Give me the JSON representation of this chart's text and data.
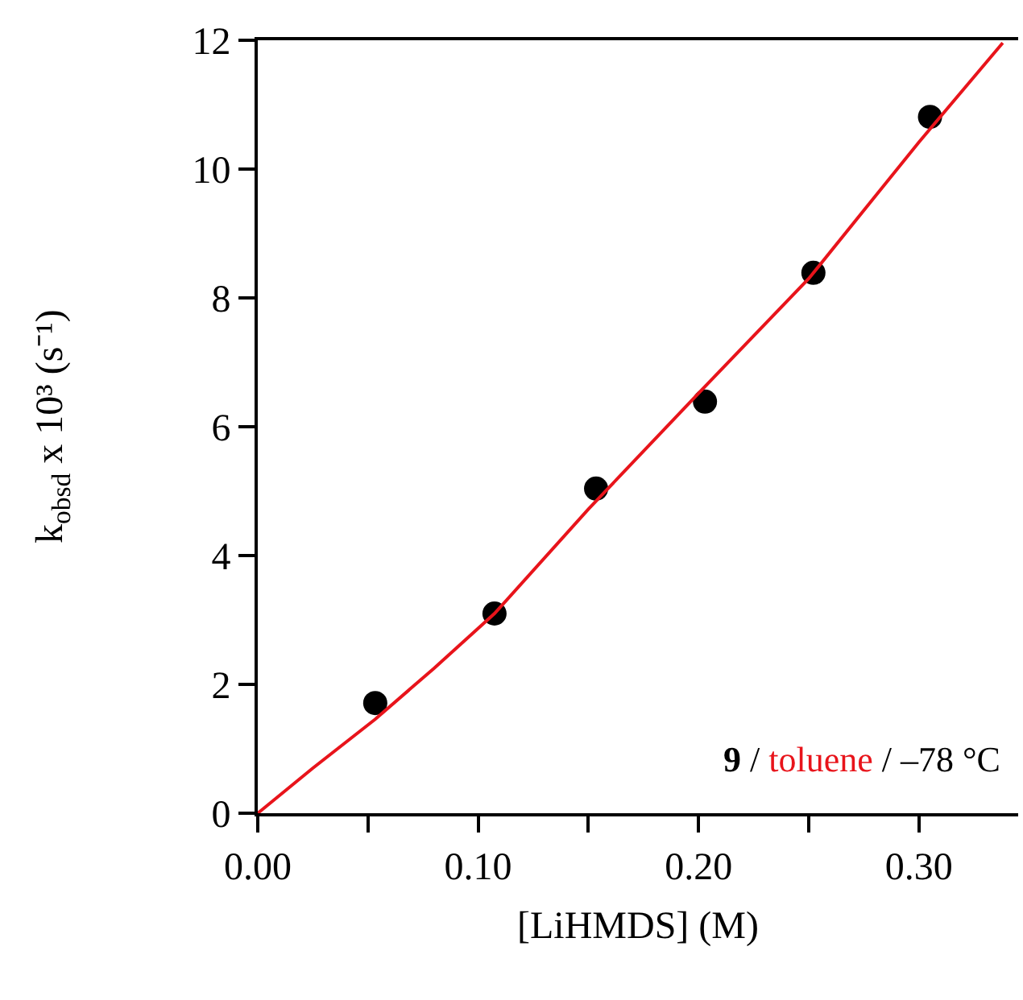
{
  "chart_data": {
    "type": "scatter",
    "xlabel": "[LiHMDS] (M)",
    "ylabel": "k$_{obsd}$ x 10³ (s⁻¹)",
    "annotations": [
      "9 / toluene / –78 °C"
    ],
    "series": [
      {
        "color": "#000000",
        "marker": "circle",
        "x": [
          0.0533,
          0.1074,
          0.1535,
          0.2029,
          0.2521,
          0.305
        ],
        "values": [
          1.71,
          3.1,
          5.04,
          6.39,
          8.39,
          10.81
        ]
      },
      {
        "type": "line",
        "color": "#e8141b",
        "marker": "none",
        "x": [
          0,
          0.025,
          0.0533,
          0.08,
          0.1074,
          0.15,
          0.2,
          0.25,
          0.3,
          0.338
        ],
        "values": [
          0,
          0.7,
          1.46,
          2.25,
          3.1,
          4.72,
          6.52,
          8.3,
          10.42,
          11.96
        ]
      }
    ],
    "xlim": [
      0,
      0.345
    ],
    "ylim": [
      0,
      12
    ],
    "xticks": [
      {
        "value": 0,
        "label": "0.00"
      },
      {
        "value": 0.05,
        "label": null
      },
      {
        "value": 0.1,
        "label": "0.10"
      },
      {
        "value": 0.15,
        "label": null
      },
      {
        "value": 0.2,
        "label": "0.20"
      },
      {
        "value": 0.25,
        "label": null
      },
      {
        "value": 0.3,
        "label": "0.30"
      }
    ],
    "yticks": [
      0,
      2,
      4,
      6,
      8,
      10,
      12
    ]
  }
}
